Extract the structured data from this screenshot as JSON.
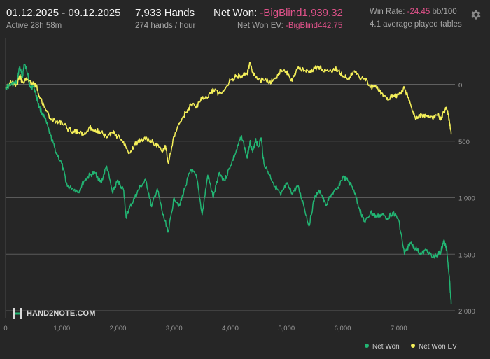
{
  "header": {
    "date_range": "01.12.2025 - 09.12.2025",
    "active": "Active 28h 58m",
    "hands": "7,933 Hands",
    "hands_per_hour": "274 hands / hour",
    "net_won_label": "Net Won: ",
    "net_won_value": "-BigBlind1,939.32",
    "net_won_ev_label": "Net Won  EV: ",
    "net_won_ev_value": "-BigBlind442.75",
    "win_rate_label": "Win Rate: ",
    "win_rate_value": "-24.45",
    "win_rate_unit": " bb/100",
    "avg_tables": "4.1 average played tables",
    "settings_icon": "gear-icon"
  },
  "logo": {
    "text": "HAND2NOTE.COM"
  },
  "colors": {
    "background": "#262626",
    "net_won": "#22b573",
    "net_won_ev": "#f5f05a",
    "negative": "#e0528a",
    "grid": "#5a5a5a",
    "zero_line": "#9a9a9a"
  },
  "chart_data": {
    "type": "line",
    "title": "",
    "xlabel": "",
    "ylabel": "",
    "xlim": [
      0,
      8000
    ],
    "ylim": [
      0,
      2000
    ],
    "y_inverted": true,
    "x_ticks": [
      "0",
      "1,000",
      "2,000",
      "3,000",
      "4,000",
      "5,000",
      "6,000",
      "7,000"
    ],
    "x_tick_values": [
      0,
      1000,
      2000,
      3000,
      4000,
      5000,
      6000,
      7000
    ],
    "y_ticks": [
      "0",
      "500",
      "1,000",
      "1,500",
      "2,000"
    ],
    "y_tick_values": [
      0,
      500,
      1000,
      1500,
      2000
    ],
    "grid": true,
    "legend_position": "bottom-right",
    "series": [
      {
        "name": "Net Won",
        "color": "#22b573",
        "x": [
          0,
          100,
          200,
          250,
          300,
          330,
          400,
          430,
          500,
          550,
          600,
          700,
          800,
          900,
          1000,
          1100,
          1200,
          1300,
          1400,
          1500,
          1600,
          1700,
          1800,
          1900,
          2000,
          2100,
          2150,
          2200,
          2300,
          2400,
          2500,
          2600,
          2700,
          2800,
          2900,
          3000,
          3100,
          3200,
          3300,
          3400,
          3500,
          3600,
          3700,
          3800,
          3900,
          4000,
          4100,
          4200,
          4300,
          4350,
          4400,
          4450,
          4500,
          4550,
          4600,
          4700,
          4800,
          4900,
          5000,
          5100,
          5200,
          5300,
          5400,
          5500,
          5600,
          5700,
          5800,
          5900,
          6000,
          6100,
          6200,
          6300,
          6400,
          6500,
          6600,
          6700,
          6800,
          6900,
          7000,
          7100,
          7200,
          7300,
          7400,
          7500,
          7600,
          7700,
          7750,
          7800,
          7850,
          7900,
          7933
        ],
        "y": [
          30,
          0,
          -20,
          -160,
          -60,
          -180,
          -100,
          20,
          20,
          100,
          200,
          300,
          450,
          600,
          700,
          900,
          920,
          950,
          850,
          800,
          780,
          870,
          720,
          950,
          850,
          930,
          1180,
          1100,
          1000,
          900,
          850,
          1080,
          920,
          1150,
          1300,
          1000,
          1070,
          900,
          750,
          820,
          1150,
          800,
          1000,
          780,
          850,
          720,
          600,
          450,
          650,
          500,
          600,
          480,
          550,
          470,
          700,
          800,
          900,
          980,
          880,
          960,
          900,
          1050,
          1250,
          1000,
          940,
          1070,
          970,
          930,
          820,
          850,
          930,
          1100,
          1220,
          1130,
          1170,
          1150,
          1180,
          1130,
          1200,
          1500,
          1400,
          1450,
          1500,
          1460,
          1530,
          1500,
          1480,
          1380,
          1450,
          1700,
          1940
        ]
      },
      {
        "name": "Net Won  EV",
        "color": "#f5f05a",
        "x": [
          0,
          100,
          200,
          250,
          300,
          400,
          500,
          550,
          600,
          700,
          800,
          900,
          1000,
          1100,
          1200,
          1300,
          1400,
          1500,
          1600,
          1700,
          1800,
          1900,
          2000,
          2100,
          2200,
          2300,
          2400,
          2500,
          2600,
          2700,
          2800,
          2850,
          2900,
          3000,
          3100,
          3200,
          3300,
          3400,
          3500,
          3600,
          3700,
          3800,
          3900,
          4000,
          4100,
          4200,
          4300,
          4350,
          4400,
          4500,
          4600,
          4700,
          4800,
          4900,
          5000,
          5100,
          5200,
          5300,
          5400,
          5500,
          5600,
          5700,
          5800,
          5900,
          6000,
          6100,
          6200,
          6300,
          6400,
          6500,
          6600,
          6700,
          6800,
          6900,
          7000,
          7100,
          7200,
          7300,
          7400,
          7500,
          7600,
          7700,
          7750,
          7800,
          7850,
          7900,
          7933
        ],
        "y": [
          20,
          -20,
          0,
          -80,
          -20,
          -50,
          0,
          0,
          100,
          200,
          300,
          330,
          330,
          390,
          410,
          420,
          440,
          380,
          400,
          420,
          470,
          420,
          460,
          500,
          610,
          530,
          490,
          480,
          500,
          540,
          590,
          540,
          700,
          460,
          340,
          250,
          180,
          190,
          120,
          110,
          40,
          80,
          40,
          -40,
          -70,
          -80,
          -90,
          -190,
          -100,
          -40,
          -40,
          -20,
          -60,
          -120,
          -120,
          -30,
          -140,
          -140,
          -100,
          -150,
          -150,
          -120,
          -120,
          -140,
          -80,
          -50,
          -120,
          -60,
          -60,
          20,
          30,
          80,
          130,
          100,
          90,
          30,
          160,
          310,
          260,
          280,
          300,
          270,
          300,
          240,
          200,
          320,
          440
        ]
      }
    ]
  }
}
